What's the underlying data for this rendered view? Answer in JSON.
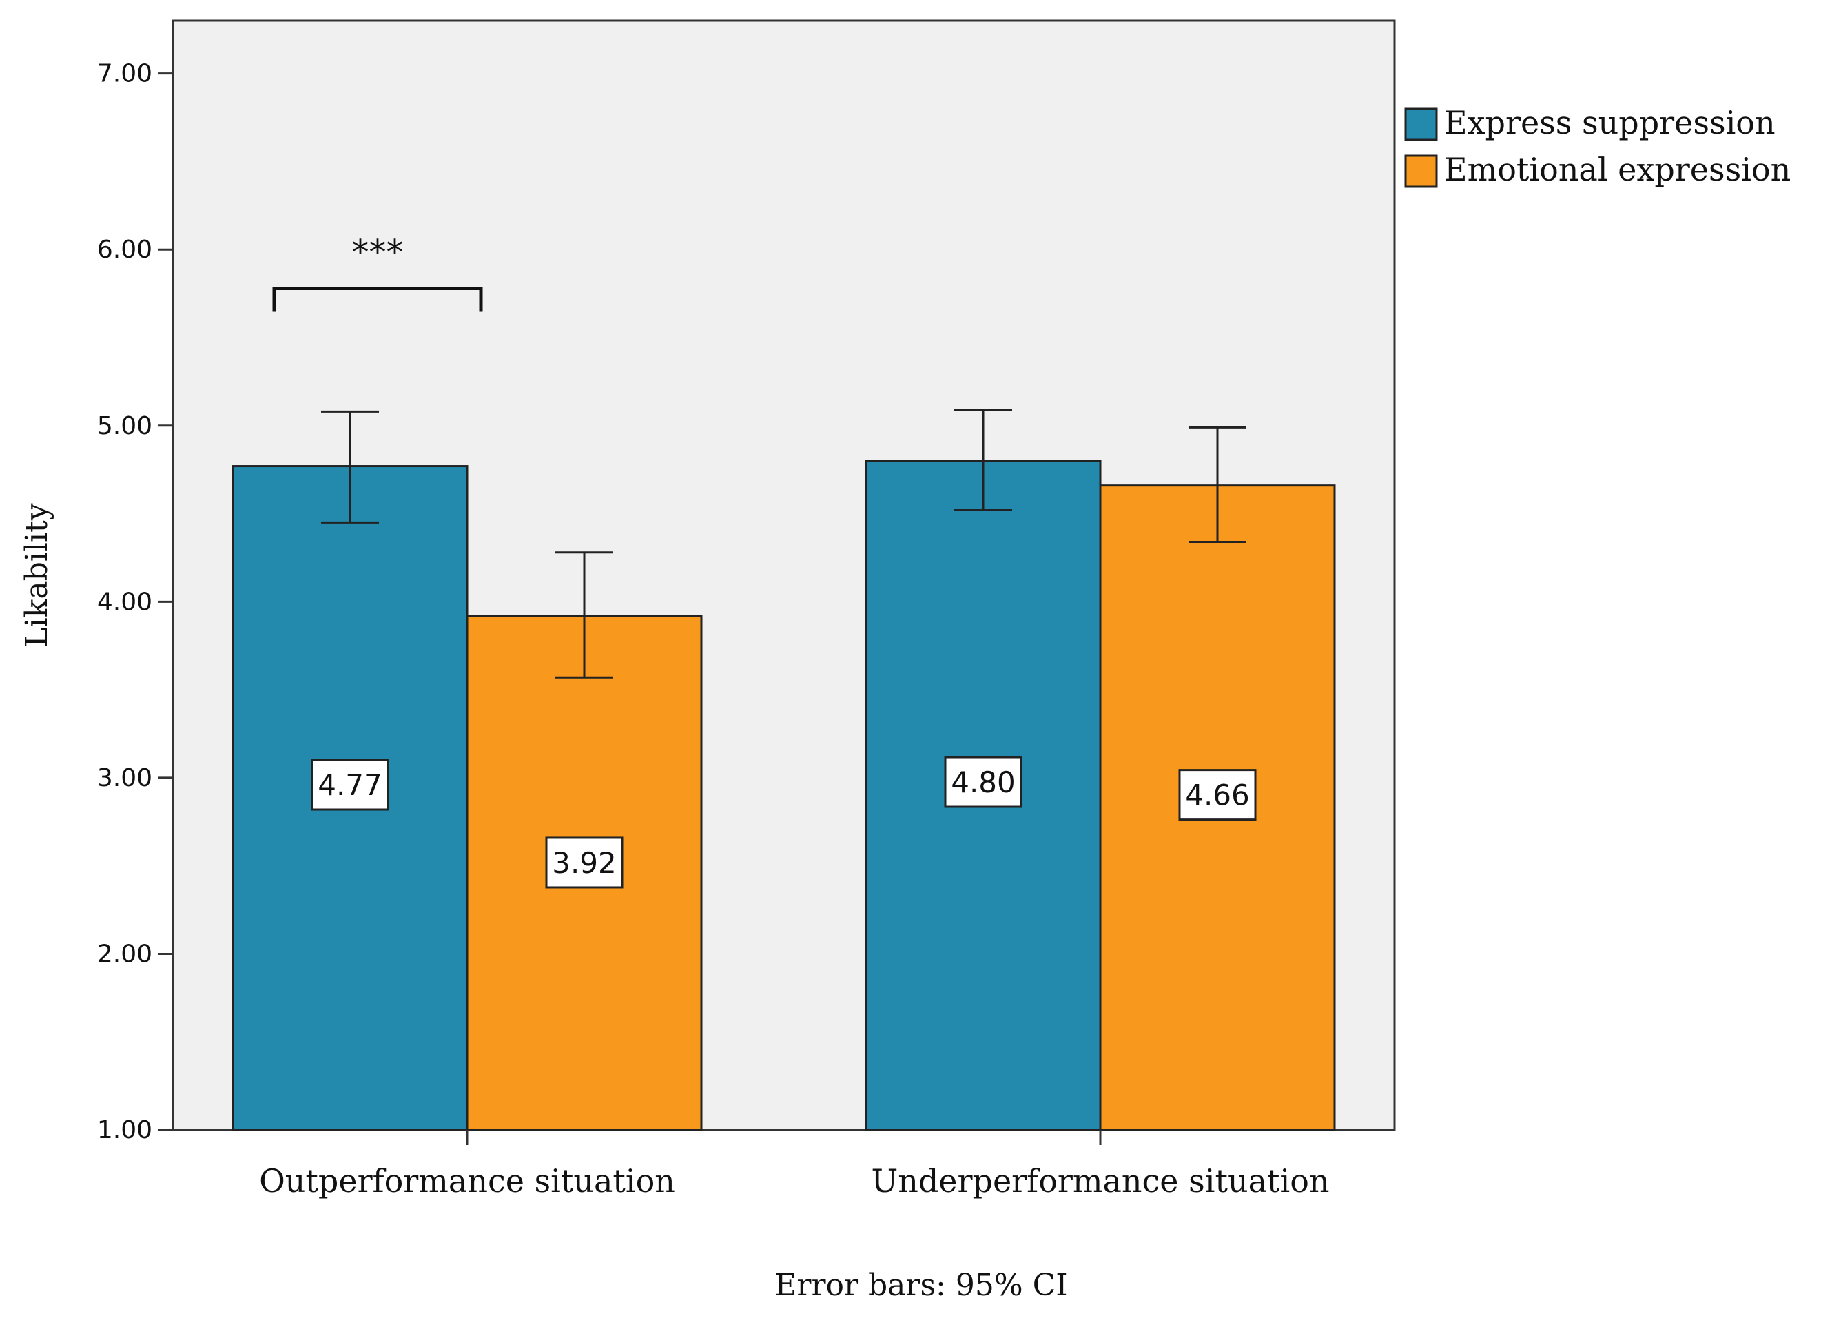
{
  "chart_data": {
    "type": "bar",
    "ylabel": "Likability",
    "ylim": [
      1,
      7.3
    ],
    "yticks": [
      1,
      2,
      3,
      4,
      5,
      6,
      7
    ],
    "ytick_labels": [
      "1.00",
      "2.00",
      "3.00",
      "4.00",
      "5.00",
      "6.00",
      "7.00"
    ],
    "categories": [
      "Outperformance situation",
      "Underperformance situation"
    ],
    "series": [
      {
        "name": "Express suppression",
        "color": "#238AAD",
        "values": [
          4.77,
          4.8
        ],
        "value_labels": [
          "4.77",
          "4.80"
        ],
        "ci_low": [
          4.45,
          4.52
        ],
        "ci_high": [
          5.08,
          5.09
        ]
      },
      {
        "name": "Emotional expression",
        "color": "#F8981D",
        "values": [
          3.92,
          4.66
        ],
        "value_labels": [
          "3.92",
          "4.66"
        ],
        "ci_low": [
          3.57,
          4.34
        ],
        "ci_high": [
          4.28,
          4.99
        ]
      }
    ],
    "annotations": [
      {
        "text": "***",
        "category": "Outperformance situation",
        "bracket_y": 5.78
      }
    ],
    "note": "Error bars: 95% CI",
    "legend_position": "right",
    "grid": false,
    "plot_background": "#F0F0F0"
  }
}
